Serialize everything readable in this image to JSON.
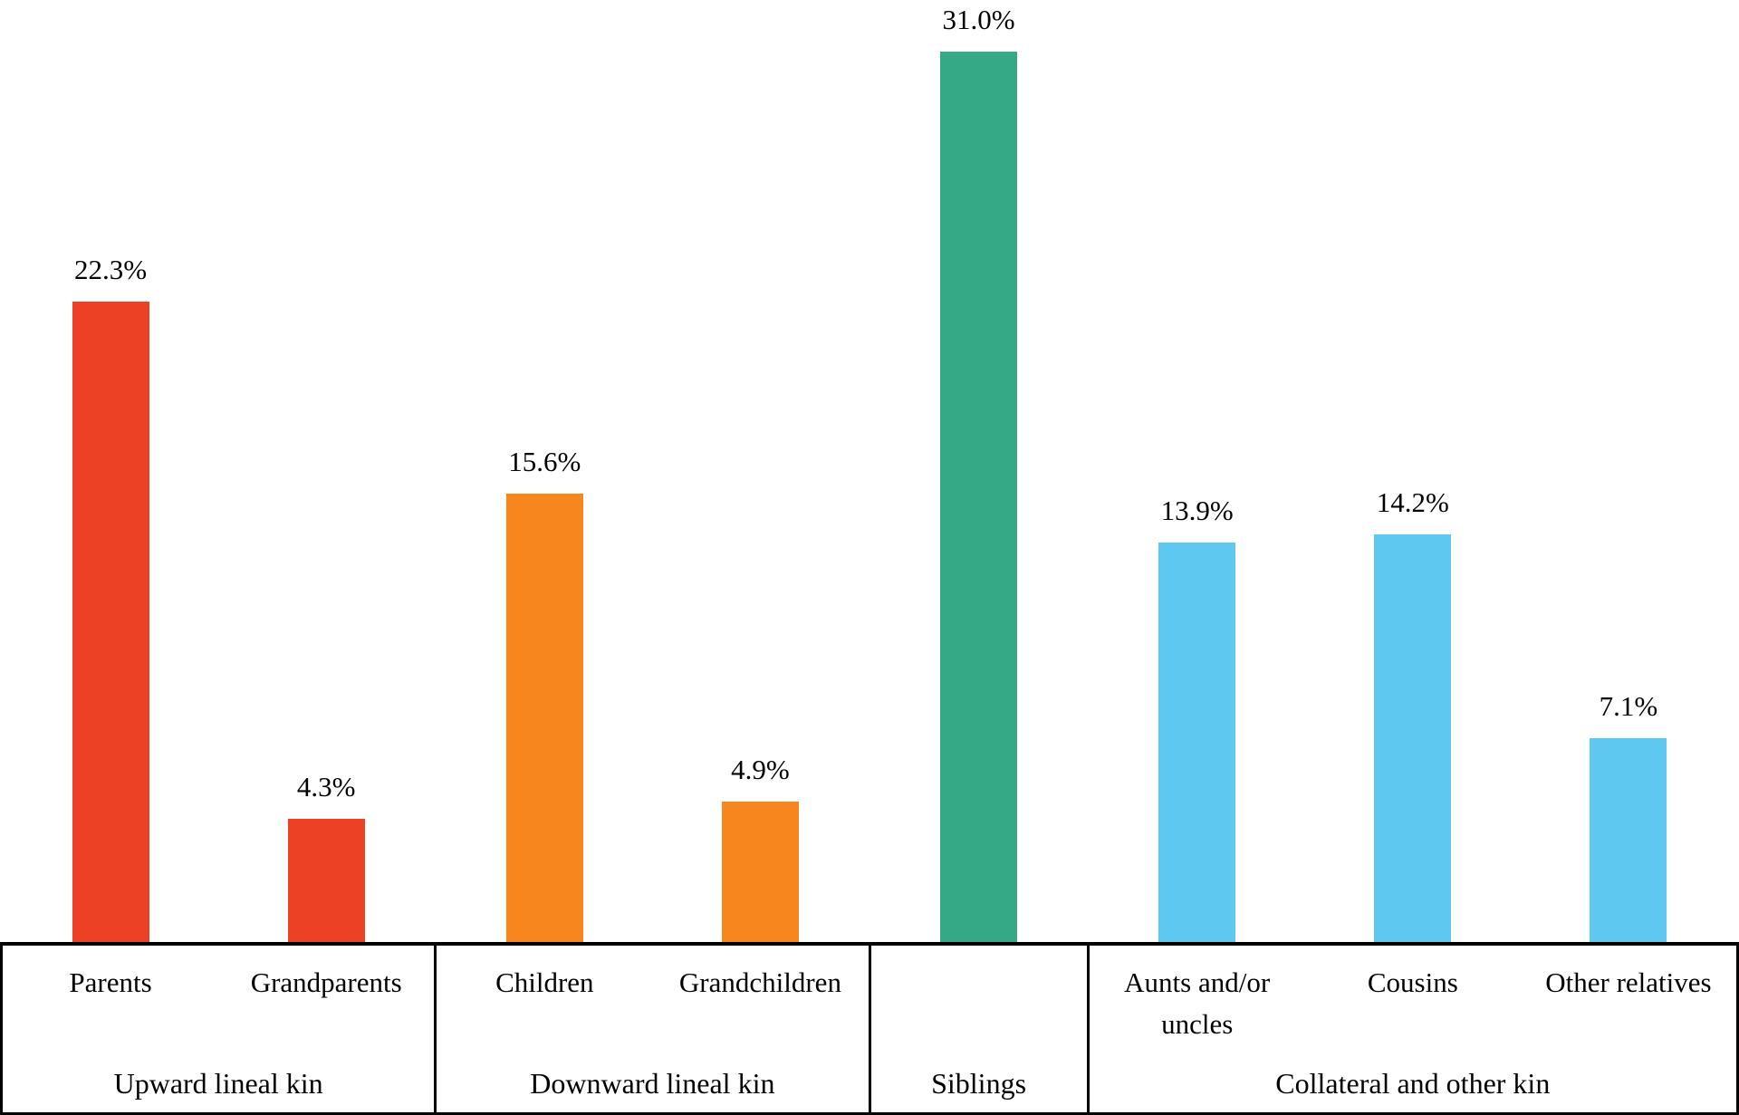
{
  "chart_data": {
    "type": "bar",
    "title": "",
    "xlabel": "",
    "ylabel": "",
    "value_unit": "%",
    "ylim": [
      0,
      33
    ],
    "grid": false,
    "legend": false,
    "axis_color": "#000000",
    "text_color": "#000000",
    "background_color": "#ffffff",
    "categories": [
      "Parents",
      "Grandparents",
      "Children",
      "Grandchildren",
      "Siblings",
      "Aunts and/or uncles",
      "Cousins",
      "Other relatives"
    ],
    "values": [
      22.3,
      4.3,
      15.6,
      4.9,
      31.0,
      13.9,
      14.2,
      7.1
    ],
    "groups": [
      {
        "label": "Upward lineal kin",
        "color": "#EC4125",
        "bars": [
          {
            "category": "Parents",
            "value": 22.3,
            "value_label": "22.3%"
          },
          {
            "category": "Grandparents",
            "value": 4.3,
            "value_label": "4.3%"
          }
        ]
      },
      {
        "label": "Downward lineal kin",
        "color": "#F8861E",
        "bars": [
          {
            "category": "Children",
            "value": 15.6,
            "value_label": "15.6%"
          },
          {
            "category": "Grandchildren",
            "value": 4.9,
            "value_label": "4.9%"
          }
        ]
      },
      {
        "label": "Siblings",
        "color": "#35A986",
        "bars": [
          {
            "category": "",
            "value": 31.0,
            "value_label": "31.0%"
          }
        ]
      },
      {
        "label": "Collateral and other kin",
        "color": "#5EC8F0",
        "bars": [
          {
            "category": "Aunts and/or uncles",
            "value": 13.9,
            "value_label": "13.9%"
          },
          {
            "category": "Cousins",
            "value": 14.2,
            "value_label": "14.2%"
          },
          {
            "category": "Other relatives",
            "value": 7.1,
            "value_label": "7.1%"
          }
        ]
      }
    ]
  }
}
